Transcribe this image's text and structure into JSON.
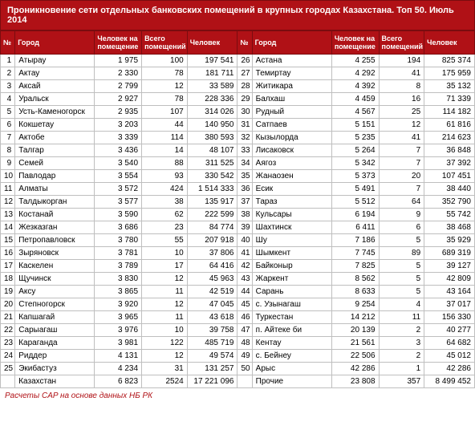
{
  "title": "Проникновение сети отдельных банковских помещений в крупных городах Казахстана.  Топ 50. Июль 2014",
  "headers": {
    "idx": "№",
    "city": "Город",
    "v1": "Человек на помещение",
    "v2": "Всего помещений",
    "v3": "Человек"
  },
  "left": [
    {
      "n": "1",
      "city": "Атырау",
      "v1": "1 975",
      "v2": "100",
      "v3": "197 541"
    },
    {
      "n": "2",
      "city": "Актау",
      "v1": "2 330",
      "v2": "78",
      "v3": "181 711"
    },
    {
      "n": "3",
      "city": "Аксай",
      "v1": "2 799",
      "v2": "12",
      "v3": "33 589"
    },
    {
      "n": "4",
      "city": "Уральск",
      "v1": "2 927",
      "v2": "78",
      "v3": "228 336"
    },
    {
      "n": "5",
      "city": "Усть-Каменогорск",
      "v1": "2 935",
      "v2": "107",
      "v3": "314 026"
    },
    {
      "n": "6",
      "city": "Кокшетау",
      "v1": "3 203",
      "v2": "44",
      "v3": "140 950"
    },
    {
      "n": "7",
      "city": "Актобе",
      "v1": "3 339",
      "v2": "114",
      "v3": "380 593"
    },
    {
      "n": "8",
      "city": "Талгар",
      "v1": "3 436",
      "v2": "14",
      "v3": "48 107"
    },
    {
      "n": "9",
      "city": "Семей",
      "v1": "3 540",
      "v2": "88",
      "v3": "311 525"
    },
    {
      "n": "10",
      "city": "Павлодар",
      "v1": "3 554",
      "v2": "93",
      "v3": "330 542"
    },
    {
      "n": "11",
      "city": "Алматы",
      "v1": "3 572",
      "v2": "424",
      "v3": "1 514 333"
    },
    {
      "n": "12",
      "city": "Талдыкорган",
      "v1": "3 577",
      "v2": "38",
      "v3": "135 917"
    },
    {
      "n": "13",
      "city": "Костанай",
      "v1": "3 590",
      "v2": "62",
      "v3": "222 599"
    },
    {
      "n": "14",
      "city": "Жезказган",
      "v1": "3 686",
      "v2": "23",
      "v3": "84 774"
    },
    {
      "n": "15",
      "city": "Петропавловск",
      "v1": "3 780",
      "v2": "55",
      "v3": "207 918"
    },
    {
      "n": "16",
      "city": "Зыряновск",
      "v1": "3 781",
      "v2": "10",
      "v3": "37 806"
    },
    {
      "n": "17",
      "city": "Каскелен",
      "v1": "3 789",
      "v2": "17",
      "v3": "64 416"
    },
    {
      "n": "18",
      "city": "Щучинск",
      "v1": "3 830",
      "v2": "12",
      "v3": "45 963"
    },
    {
      "n": "19",
      "city": "Аксу",
      "v1": "3 865",
      "v2": "11",
      "v3": "42 519"
    },
    {
      "n": "20",
      "city": "Степногорск",
      "v1": "3 920",
      "v2": "12",
      "v3": "47 045"
    },
    {
      "n": "21",
      "city": "Капшагай",
      "v1": "3 965",
      "v2": "11",
      "v3": "43 618"
    },
    {
      "n": "22",
      "city": "Сарыагаш",
      "v1": "3 976",
      "v2": "10",
      "v3": "39 758"
    },
    {
      "n": "23",
      "city": "Караганда",
      "v1": "3 981",
      "v2": "122",
      "v3": "485 719"
    },
    {
      "n": "24",
      "city": "Риддер",
      "v1": "4 131",
      "v2": "12",
      "v3": "49 574"
    },
    {
      "n": "25",
      "city": "Экибастуз",
      "v1": "4 234",
      "v2": "31",
      "v3": "131 257"
    },
    {
      "n": "",
      "city": "Казахстан",
      "v1": "6 823",
      "v2": "2524",
      "v3": "17 221 096"
    }
  ],
  "right": [
    {
      "n": "26",
      "city": "Астана",
      "v1": "4 255",
      "v2": "194",
      "v3": "825 374"
    },
    {
      "n": "27",
      "city": "Темиртау",
      "v1": "4 292",
      "v2": "41",
      "v3": "175 959"
    },
    {
      "n": "28",
      "city": "Житикара",
      "v1": "4 392",
      "v2": "8",
      "v3": "35 132"
    },
    {
      "n": "29",
      "city": "Балхаш",
      "v1": "4 459",
      "v2": "16",
      "v3": "71 339"
    },
    {
      "n": "30",
      "city": "Рудный",
      "v1": "4 567",
      "v2": "25",
      "v3": "114 182"
    },
    {
      "n": "31",
      "city": "Сатпаев",
      "v1": "5 151",
      "v2": "12",
      "v3": "61 816"
    },
    {
      "n": "32",
      "city": "Кызылорда",
      "v1": "5 235",
      "v2": "41",
      "v3": "214 623"
    },
    {
      "n": "33",
      "city": "Лисаковск",
      "v1": "5 264",
      "v2": "7",
      "v3": "36 848"
    },
    {
      "n": "34",
      "city": "Аягоз",
      "v1": "5 342",
      "v2": "7",
      "v3": "37 392"
    },
    {
      "n": "35",
      "city": "Жанаозен",
      "v1": "5 373",
      "v2": "20",
      "v3": "107 451"
    },
    {
      "n": "36",
      "city": "Есик",
      "v1": "5 491",
      "v2": "7",
      "v3": "38 440"
    },
    {
      "n": "37",
      "city": "Тараз",
      "v1": "5 512",
      "v2": "64",
      "v3": "352 790"
    },
    {
      "n": "38",
      "city": "Кульсары",
      "v1": "6 194",
      "v2": "9",
      "v3": "55 742"
    },
    {
      "n": "39",
      "city": "Шахтинск",
      "v1": "6 411",
      "v2": "6",
      "v3": "38 468"
    },
    {
      "n": "40",
      "city": "Шу",
      "v1": "7 186",
      "v2": "5",
      "v3": "35 929"
    },
    {
      "n": "41",
      "city": "Шымкент",
      "v1": "7 745",
      "v2": "89",
      "v3": "689 319"
    },
    {
      "n": "42",
      "city": "Байконыр",
      "v1": "7 825",
      "v2": "5",
      "v3": "39 127"
    },
    {
      "n": "43",
      "city": "Жаркент",
      "v1": "8 562",
      "v2": "5",
      "v3": "42 809"
    },
    {
      "n": "44",
      "city": "Сарань",
      "v1": "8 633",
      "v2": "5",
      "v3": "43 164"
    },
    {
      "n": "45",
      "city": "с. Узынагаш",
      "v1": "9 254",
      "v2": "4",
      "v3": "37 017"
    },
    {
      "n": "46",
      "city": "Туркестан",
      "v1": "14 212",
      "v2": "11",
      "v3": "156 330"
    },
    {
      "n": "47",
      "city": "п. Айтеке би",
      "v1": "20 139",
      "v2": "2",
      "v3": "40 277"
    },
    {
      "n": "48",
      "city": "Кентау",
      "v1": "21 561",
      "v2": "3",
      "v3": "64 682"
    },
    {
      "n": "49",
      "city": "с. Бейнеу",
      "v1": "22 506",
      "v2": "2",
      "v3": "45 012"
    },
    {
      "n": "50",
      "city": "Арыс",
      "v1": "42 286",
      "v2": "1",
      "v3": "42 286"
    },
    {
      "n": "",
      "city": "Прочие",
      "v1": "23 808",
      "v2": "357",
      "v3": "8 499 452"
    }
  ],
  "footer": "Расчеты CAP на основе данных НБ РК",
  "colors": {
    "header_bg": "#b01116",
    "header_border": "#7a0c0f",
    "cell_border": "#bfbfbf",
    "footer_color": "#b01116"
  }
}
